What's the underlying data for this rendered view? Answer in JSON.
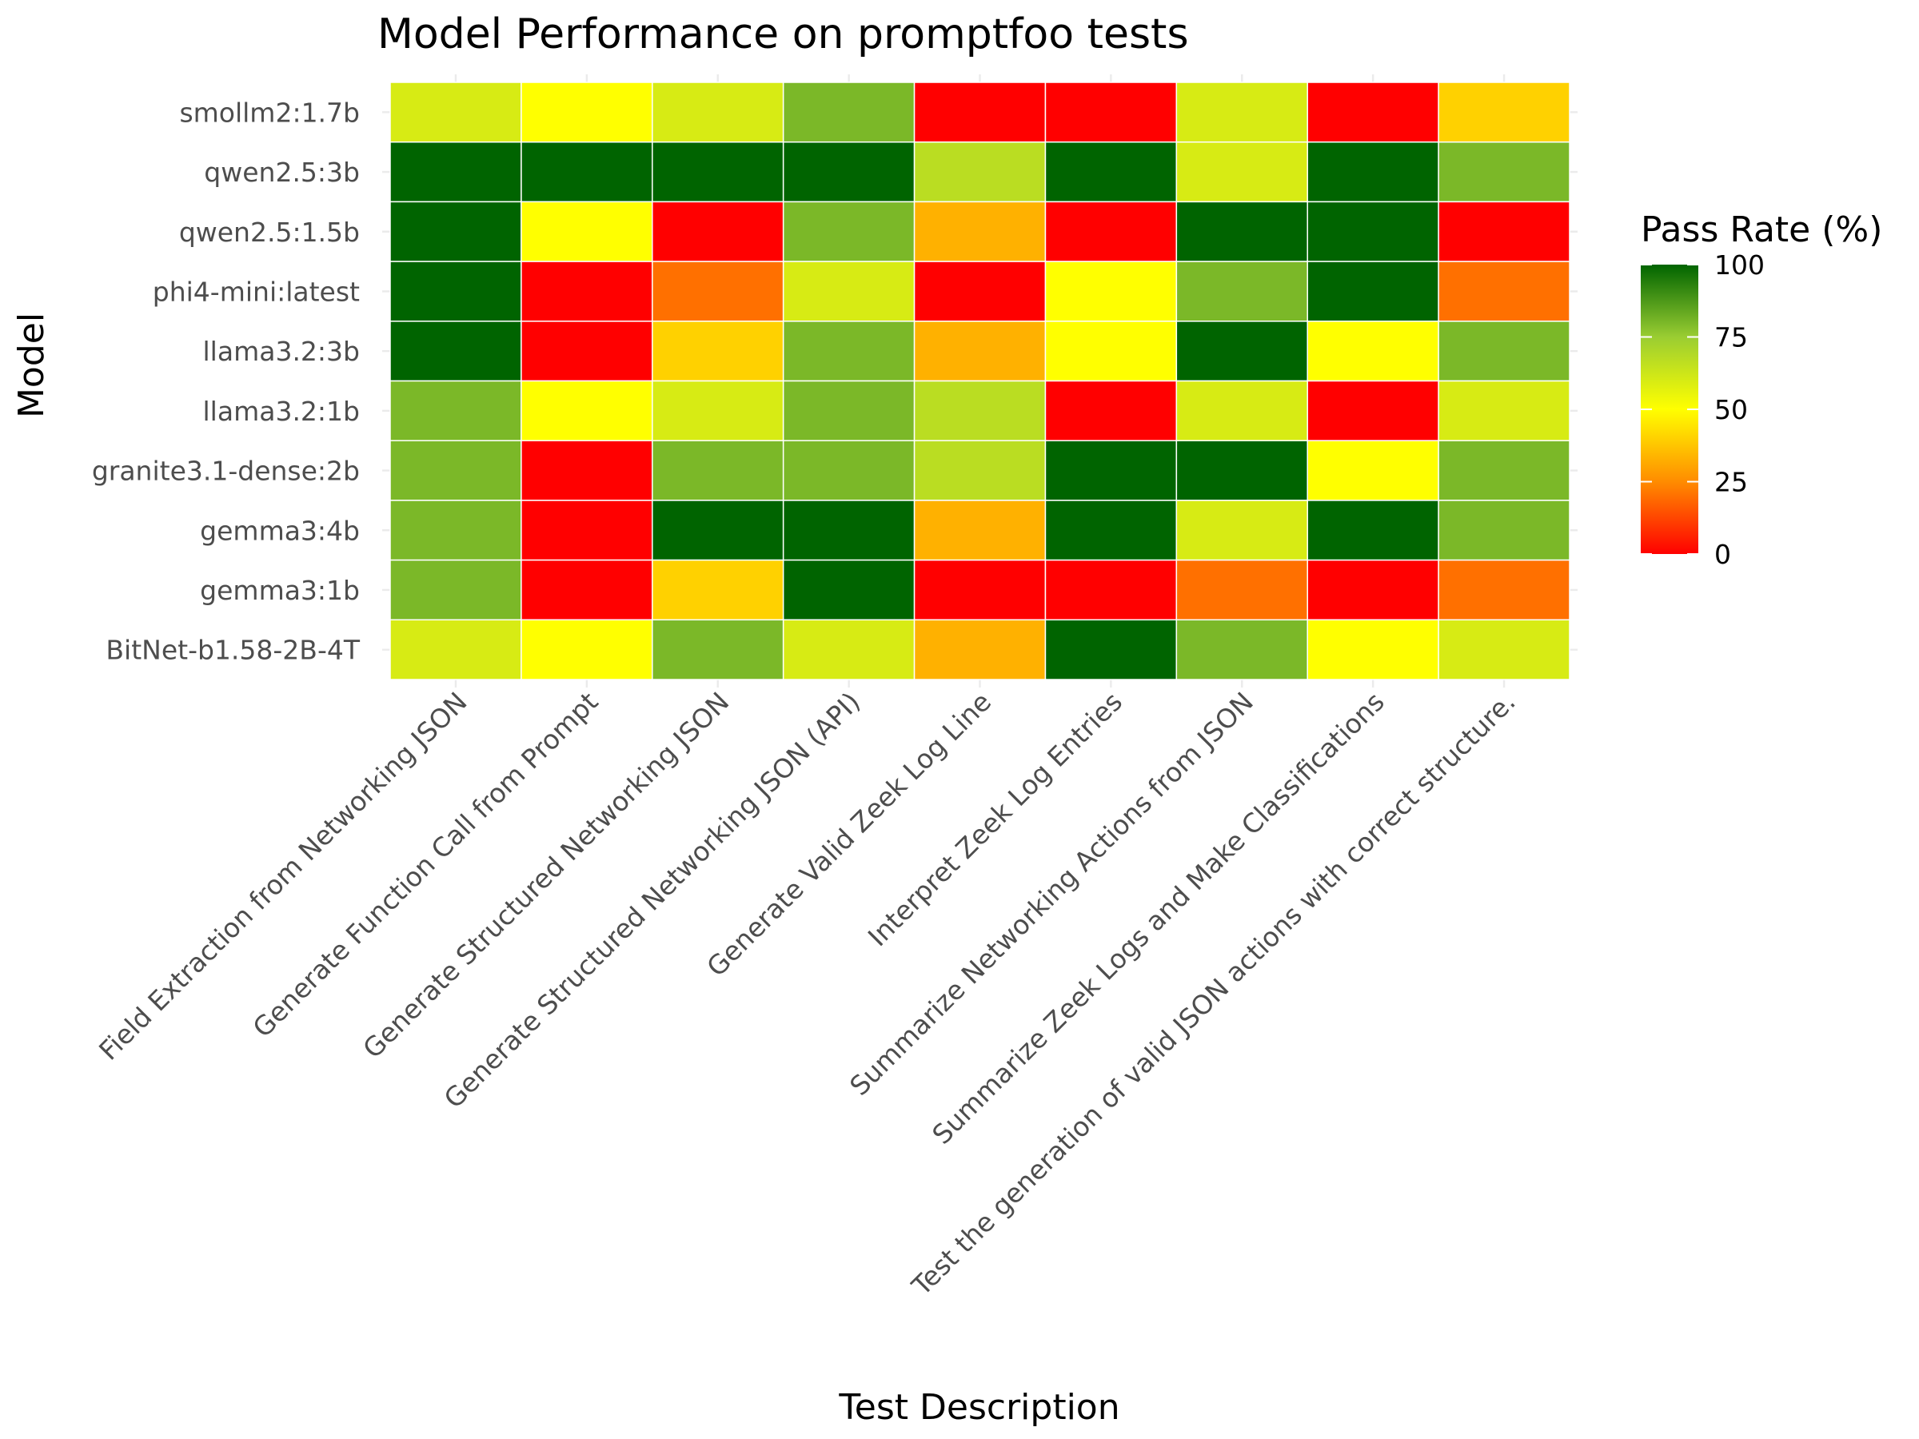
{
  "chart_data": {
    "type": "heatmap",
    "title": "Model Performance on promptfoo tests",
    "xlabel": "Test Description",
    "ylabel": "Model",
    "x_categories": [
      "Field Extraction from Networking JSON",
      "Generate Function Call from Prompt",
      "Generate Structured Networking JSON",
      "Generate Structured Networking JSON (API)",
      "Generate Valid Zeek Log Line",
      "Interpret Zeek Log Entries",
      "Summarize Networking Actions from JSON",
      "Summarize Zeek Logs and Make Classifications",
      "Test the generation of valid JSON actions with correct structure."
    ],
    "y_categories": [
      "smollm2:1.7b",
      "qwen2.5:3b",
      "qwen2.5:1.5b",
      "phi4-mini:latest",
      "llama3.2:3b",
      "llama3.2:1b",
      "granite3.1-dense:2b",
      "gemma3:4b",
      "gemma3:1b",
      "BitNet-b1.58-2B-4T"
    ],
    "values": [
      [
        60,
        50,
        60,
        80,
        0,
        0,
        60,
        0,
        40
      ],
      [
        100,
        100,
        100,
        100,
        67,
        100,
        60,
        100,
        80
      ],
      [
        100,
        50,
        0,
        80,
        33,
        0,
        100,
        100,
        0
      ],
      [
        100,
        0,
        20,
        60,
        0,
        50,
        80,
        100,
        20
      ],
      [
        100,
        0,
        40,
        80,
        33,
        50,
        100,
        50,
        80
      ],
      [
        80,
        50,
        60,
        80,
        67,
        0,
        60,
        0,
        60
      ],
      [
        80,
        0,
        80,
        80,
        67,
        100,
        100,
        50,
        80
      ],
      [
        80,
        0,
        100,
        100,
        33,
        100,
        60,
        100,
        80
      ],
      [
        80,
        0,
        40,
        100,
        0,
        0,
        20,
        0,
        20
      ],
      [
        60,
        50,
        80,
        60,
        33,
        100,
        80,
        50,
        60
      ]
    ],
    "legend": {
      "title": "Pass Rate (%)",
      "ticks": [
        "100",
        "75",
        "50",
        "25",
        "0"
      ],
      "range": [
        0,
        100
      ],
      "position": "right"
    },
    "color_stops": [
      {
        "value": 0,
        "color": "#ff0000"
      },
      {
        "value": 25,
        "color": "#ff8c00"
      },
      {
        "value": 50,
        "color": "#ffff00"
      },
      {
        "value": 75,
        "color": "#9acd32"
      },
      {
        "value": 100,
        "color": "#006400"
      }
    ]
  }
}
